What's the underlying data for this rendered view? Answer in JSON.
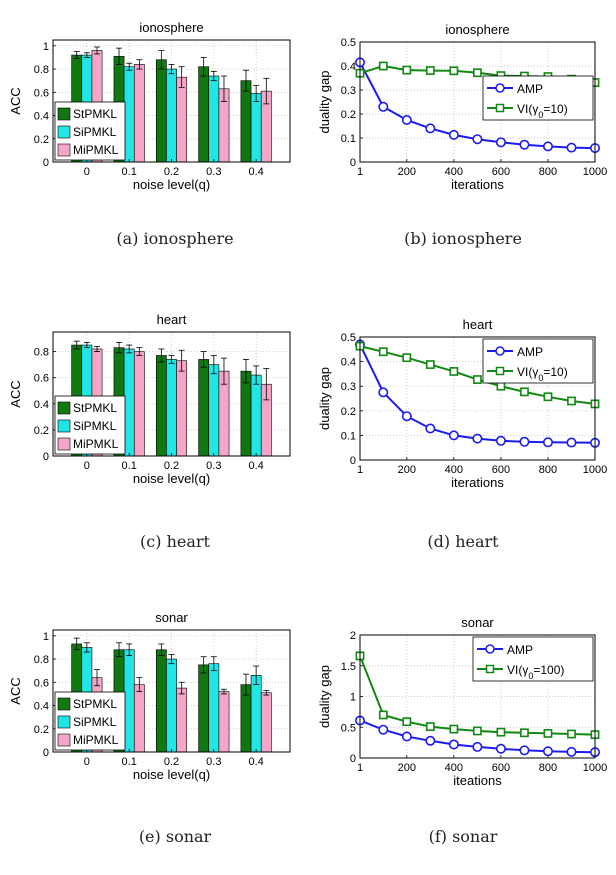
{
  "colors": {
    "StPMKL": "#117711",
    "SiPMKL": "#22e6e6",
    "MiPMKL": "#f5a6c8",
    "AMP": "#1c1cf0",
    "VI": "#118811"
  },
  "chart_data": [
    {
      "type": "bar",
      "title": "ionosphere",
      "caption": "(a) ionosphere",
      "xlabel": "noise level(q)",
      "ylabel": "ACC",
      "categories": [
        "0",
        "0.1",
        "0.2",
        "0.3",
        "0.4"
      ],
      "ylim": [
        0,
        1.05
      ],
      "yticks": [
        0,
        0.2,
        0.4,
        0.6,
        0.8,
        1
      ],
      "ytick_labels": [
        "0",
        "0.2",
        "0.4",
        "0.6",
        "0.8",
        "1"
      ],
      "grid": true,
      "legend": "bottom-left",
      "series": [
        {
          "name": "StPMKL",
          "values": [
            0.92,
            0.91,
            0.88,
            0.82,
            0.7
          ],
          "errors": [
            0.03,
            0.07,
            0.08,
            0.08,
            0.09
          ]
        },
        {
          "name": "SiPMKL",
          "values": [
            0.92,
            0.82,
            0.8,
            0.74,
            0.59
          ],
          "errors": [
            0.02,
            0.03,
            0.04,
            0.04,
            0.07
          ]
        },
        {
          "name": "MiPMKL",
          "values": [
            0.96,
            0.84,
            0.73,
            0.63,
            0.61
          ],
          "errors": [
            0.03,
            0.04,
            0.09,
            0.11,
            0.11
          ]
        }
      ]
    },
    {
      "type": "line",
      "title": "ionosphere",
      "caption": "(b) ionosphere",
      "xlabel": "iterations",
      "ylabel": "duality gap",
      "xlim": [
        1,
        1000
      ],
      "xticks": [
        1,
        200,
        400,
        600,
        800,
        1000
      ],
      "xtick_labels": [
        "1",
        "200",
        "400",
        "600",
        "800",
        "1000"
      ],
      "ylim": [
        0,
        0.5
      ],
      "yticks": [
        0,
        0.1,
        0.2,
        0.3,
        0.4,
        0.5
      ],
      "ytick_labels": [
        "0",
        "0.1",
        "0.2",
        "0.3",
        "0.4",
        "0.5"
      ],
      "grid": true,
      "legend": "middle-right",
      "x": [
        1,
        100,
        200,
        300,
        400,
        500,
        600,
        700,
        800,
        900,
        1000
      ],
      "series": [
        {
          "name": "AMP",
          "marker": "circle",
          "values": [
            0.415,
            0.23,
            0.175,
            0.14,
            0.113,
            0.095,
            0.082,
            0.072,
            0.065,
            0.06,
            0.058
          ]
        },
        {
          "name": "VI(γ0=10)",
          "marker": "square",
          "values": [
            0.37,
            0.4,
            0.383,
            0.381,
            0.38,
            0.372,
            0.36,
            0.358,
            0.356,
            0.345,
            0.331
          ]
        }
      ]
    },
    {
      "type": "bar",
      "title": "heart",
      "caption": "(c) heart",
      "xlabel": "noise level(q)",
      "ylabel": "ACC",
      "categories": [
        "0",
        "0.1",
        "0.2",
        "0.3",
        "0.4"
      ],
      "ylim": [
        0,
        0.95
      ],
      "yticks": [
        0,
        0.2,
        0.4,
        0.6,
        0.8
      ],
      "ytick_labels": [
        "0",
        "0.2",
        "0.4",
        "0.6",
        "0.8"
      ],
      "grid": true,
      "legend": "bottom-left",
      "series": [
        {
          "name": "StPMKL",
          "values": [
            0.85,
            0.83,
            0.77,
            0.74,
            0.65
          ],
          "errors": [
            0.03,
            0.04,
            0.05,
            0.06,
            0.09
          ]
        },
        {
          "name": "SiPMKL",
          "values": [
            0.85,
            0.82,
            0.74,
            0.7,
            0.62
          ],
          "errors": [
            0.02,
            0.03,
            0.03,
            0.07,
            0.07
          ]
        },
        {
          "name": "MiPMKL",
          "values": [
            0.82,
            0.8,
            0.73,
            0.65,
            0.55
          ],
          "errors": [
            0.02,
            0.03,
            0.08,
            0.1,
            0.12
          ]
        }
      ]
    },
    {
      "type": "line",
      "title": "heart",
      "caption": "(d) heart",
      "xlabel": "iterations",
      "ylabel": "duality gap",
      "xlim": [
        1,
        1000
      ],
      "xticks": [
        1,
        200,
        400,
        600,
        800,
        1000
      ],
      "xtick_labels": [
        "1",
        "200",
        "400",
        "600",
        "800",
        "1000"
      ],
      "ylim": [
        0,
        0.5
      ],
      "yticks": [
        0,
        0.1,
        0.2,
        0.3,
        0.4,
        0.5
      ],
      "ytick_labels": [
        "0",
        "0.1",
        "0.2",
        "0.3",
        "0.4",
        "0.5"
      ],
      "grid": true,
      "legend": "top-right",
      "x": [
        1,
        100,
        200,
        300,
        400,
        500,
        600,
        700,
        800,
        900,
        1000
      ],
      "series": [
        {
          "name": "AMP",
          "marker": "circle",
          "values": [
            0.47,
            0.275,
            0.178,
            0.128,
            0.1,
            0.087,
            0.078,
            0.074,
            0.072,
            0.071,
            0.07
          ]
        },
        {
          "name": "VI(γ0=10)",
          "marker": "square",
          "values": [
            0.463,
            0.44,
            0.416,
            0.388,
            0.36,
            0.327,
            0.3,
            0.277,
            0.257,
            0.24,
            0.228
          ]
        }
      ]
    },
    {
      "type": "bar",
      "title": "sonar",
      "caption": "(e) sonar",
      "xlabel": "noise level(q)",
      "ylabel": "ACC",
      "categories": [
        "0",
        "0.1",
        "0.2",
        "0.3",
        "0.4"
      ],
      "ylim": [
        0,
        1.05
      ],
      "yticks": [
        0,
        0.2,
        0.4,
        0.6,
        0.8,
        1
      ],
      "ytick_labels": [
        "0",
        "0.2",
        "0.4",
        "0.6",
        "0.8",
        "1"
      ],
      "grid": true,
      "legend": "bottom-left",
      "series": [
        {
          "name": "StPMKL",
          "values": [
            0.93,
            0.88,
            0.88,
            0.75,
            0.58
          ],
          "errors": [
            0.05,
            0.06,
            0.05,
            0.07,
            0.09
          ]
        },
        {
          "name": "SiPMKL",
          "values": [
            0.9,
            0.88,
            0.8,
            0.76,
            0.66
          ],
          "errors": [
            0.04,
            0.05,
            0.04,
            0.06,
            0.08
          ]
        },
        {
          "name": "MiPMKL",
          "values": [
            0.64,
            0.58,
            0.55,
            0.52,
            0.51
          ],
          "errors": [
            0.07,
            0.06,
            0.05,
            0.02,
            0.02
          ]
        }
      ]
    },
    {
      "type": "line",
      "title": "sonar",
      "caption": "(f) sonar",
      "xlabel": "iteations",
      "ylabel": "duality gap",
      "xlim": [
        1,
        1000
      ],
      "xticks": [
        1,
        200,
        400,
        600,
        800,
        1000
      ],
      "xtick_labels": [
        "1",
        "200",
        "400",
        "600",
        "800",
        "1000"
      ],
      "ylim": [
        0,
        2
      ],
      "yticks": [
        0,
        0.5,
        1,
        1.5,
        2
      ],
      "ytick_labels": [
        "0",
        "0.5",
        "1",
        "1.5",
        "2"
      ],
      "grid": true,
      "legend": "top-right",
      "x": [
        1,
        100,
        200,
        300,
        400,
        500,
        600,
        700,
        800,
        900,
        1000
      ],
      "series": [
        {
          "name": "AMP",
          "marker": "circle",
          "values": [
            0.61,
            0.46,
            0.35,
            0.28,
            0.22,
            0.18,
            0.15,
            0.125,
            0.11,
            0.1,
            0.095
          ]
        },
        {
          "name": "VI(γ0=100)",
          "marker": "square",
          "values": [
            1.66,
            0.7,
            0.59,
            0.51,
            0.47,
            0.44,
            0.42,
            0.41,
            0.4,
            0.39,
            0.38
          ]
        }
      ]
    }
  ]
}
